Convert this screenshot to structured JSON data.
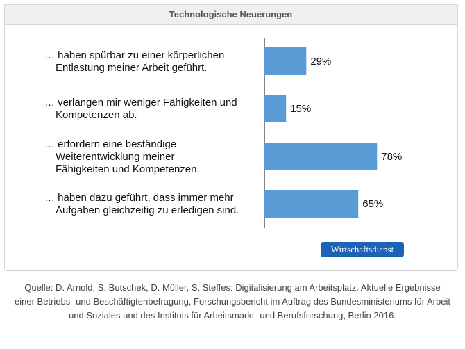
{
  "header": {
    "title": "Technologische Neuerungen"
  },
  "chart_data": {
    "type": "bar",
    "orientation": "horizontal",
    "title": "Technologische Neuerungen",
    "categories": [
      "… haben spürbar zu einer körperlichen Entlastung meiner Arbeit geführt.",
      "… verlangen mir weniger Fähigkeiten und Kompetenzen ab.",
      "… erfordern eine beständige Weiterentwicklung meiner Fähigkeiten und Kompetenzen.",
      "… haben dazu geführt, dass immer mehr Aufgaben gleichzeitig zu erledigen sind."
    ],
    "category_lines": [
      [
        "… haben spürbar zu einer körperlichen",
        "Entlastung meiner Arbeit geführt."
      ],
      [
        "… verlangen mir weniger Fähigkeiten und",
        "Kompetenzen ab."
      ],
      [
        "… erfordern eine beständige",
        "Weiterentwicklung meiner",
        "Fähigkeiten und Kompetenzen."
      ],
      [
        "… haben dazu geführt, dass immer mehr",
        "Aufgaben gleichzeitig zu erledigen sind."
      ]
    ],
    "values": [
      29,
      15,
      78,
      65
    ],
    "value_labels": [
      "29%",
      "15%",
      "78%",
      "65%"
    ],
    "unit": "%",
    "xlim": [
      0,
      100
    ],
    "bar_color": "#5b9bd5",
    "grid": false
  },
  "badge": {
    "label": "Wirtschaftsdienst",
    "color": "#1c63b7"
  },
  "source": {
    "text": "Quelle: D. Arnold, S. Butschek, D. Müller, S. Steffes: Digitalisierung am Arbeitsplatz. Aktuelle Ergebnisse einer Betriebs- und Beschäftigtenbefragung, Forschungsbericht im Auftrag des Bundesministeriums für Arbeit und Soziales und des Instituts für Arbeitsmarkt- und Berufsforschung, Berlin 2016."
  }
}
